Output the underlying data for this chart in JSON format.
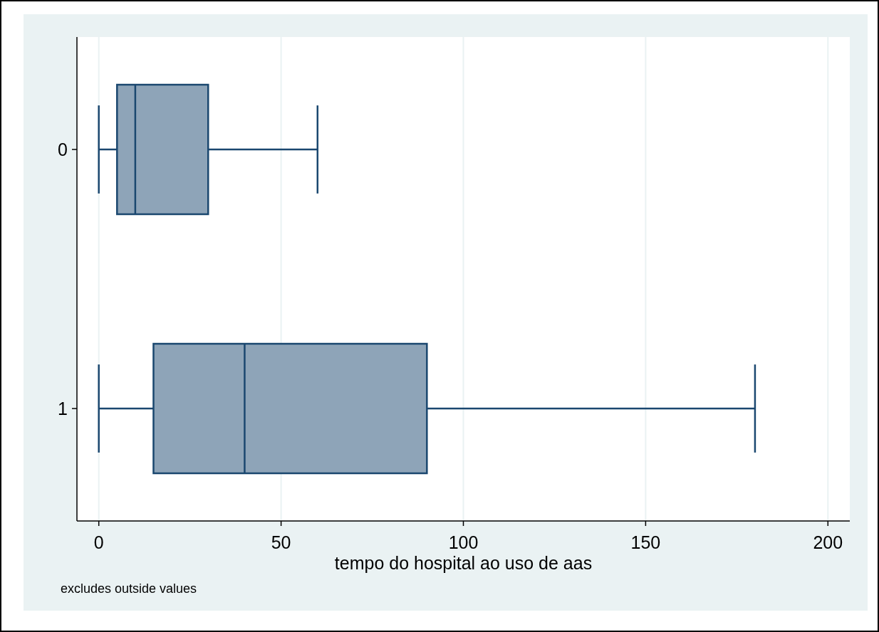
{
  "chart_data": {
    "type": "box",
    "orientation": "horizontal",
    "categories": [
      "0",
      "1"
    ],
    "boxes": [
      {
        "low": 0,
        "q1": 5,
        "median": 10,
        "q3": 30,
        "high": 60
      },
      {
        "low": 0,
        "q1": 15,
        "median": 40,
        "q3": 90,
        "high": 180
      }
    ],
    "color": "#8ea4b8",
    "xlim": [
      -6,
      206
    ],
    "xticks": [
      0,
      50,
      100,
      150,
      200
    ],
    "grid": "x",
    "xlabel": "tempo do hospital ao uso de aas",
    "annotations": [
      "excludes outside values"
    ]
  }
}
